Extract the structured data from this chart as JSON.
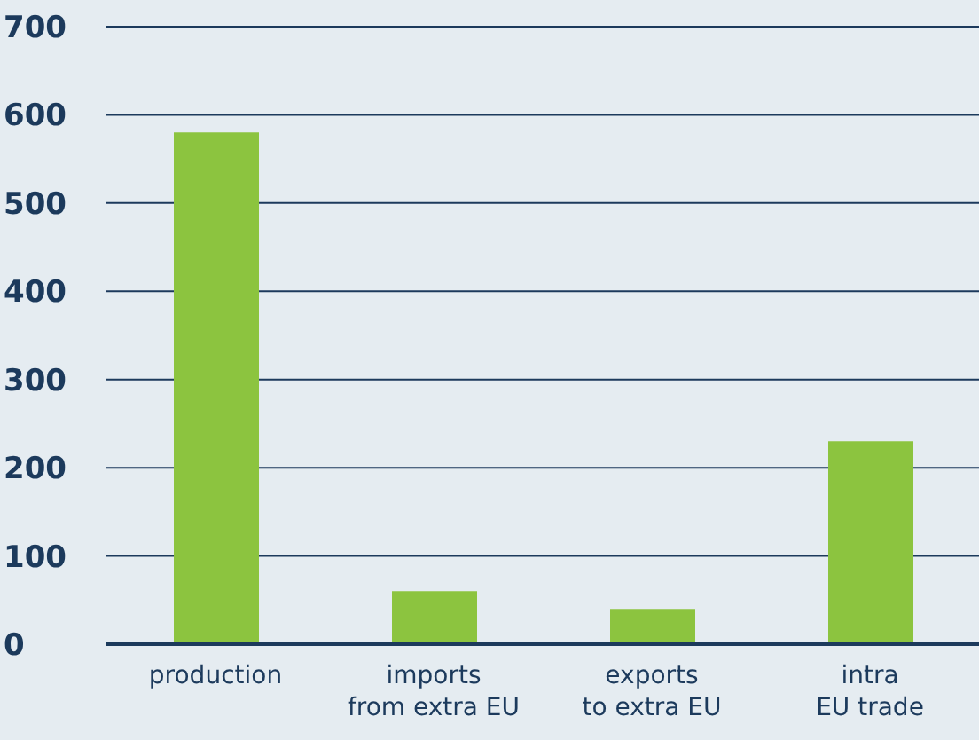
{
  "chart_data": {
    "type": "bar",
    "categories": [
      "production",
      "imports\nfrom extra EU",
      "exports\nto extra EU",
      "intra\nEU trade"
    ],
    "values": [
      580,
      60,
      40,
      230
    ],
    "color": "#8cc43f",
    "ylim": [
      0,
      700
    ],
    "yticks": [
      0,
      100,
      200,
      300,
      400,
      500,
      600,
      700
    ],
    "grid": "y"
  }
}
